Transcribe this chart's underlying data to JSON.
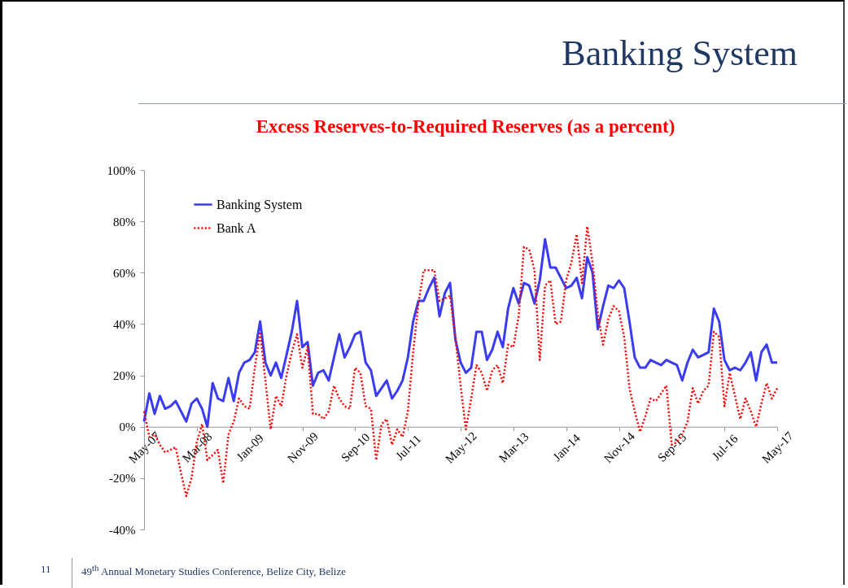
{
  "chart_data": {
    "type": "line",
    "title": "Banking System",
    "subtitle": "Excess Reserves-to-Required Reserves (as a percent)",
    "categories": [
      "May-07",
      null,
      null,
      null,
      null,
      null,
      null,
      null,
      null,
      null,
      "Mar-08",
      null,
      null,
      null,
      null,
      null,
      null,
      null,
      null,
      null,
      "Jan-09",
      null,
      null,
      null,
      null,
      null,
      null,
      null,
      null,
      null,
      "Nov-09",
      null,
      null,
      null,
      null,
      null,
      null,
      null,
      null,
      null,
      "Sep-10",
      null,
      null,
      null,
      null,
      null,
      null,
      null,
      null,
      null,
      "Jul-11",
      null,
      null,
      null,
      null,
      null,
      null,
      null,
      null,
      null,
      "May-12",
      null,
      null,
      null,
      null,
      null,
      null,
      null,
      null,
      null,
      "Mar-13",
      null,
      null,
      null,
      null,
      null,
      null,
      null,
      null,
      null,
      "Jan-14",
      null,
      null,
      null,
      null,
      null,
      null,
      null,
      null,
      null,
      "Nov-14",
      null,
      null,
      null,
      null,
      null,
      null,
      null,
      null,
      null,
      "Sep-15",
      null,
      null,
      null,
      null,
      null,
      null,
      null,
      null,
      null,
      "Jul-16",
      null,
      null,
      null,
      null,
      null,
      null,
      null,
      null,
      null,
      "May-17"
    ],
    "series": [
      {
        "name": "Banking System",
        "color": "#3b3bf2",
        "line_style": "solid",
        "values": [
          2,
          13,
          5,
          12,
          7,
          8,
          10,
          6,
          2,
          9,
          11,
          7,
          0,
          17,
          11,
          10,
          19,
          10,
          21,
          25,
          26,
          29,
          41,
          25,
          20,
          25,
          19,
          28,
          37,
          49,
          31,
          33,
          16,
          21,
          22,
          18,
          27,
          36,
          27,
          31,
          36,
          37,
          25,
          22,
          12,
          15,
          18,
          11,
          14,
          18,
          27,
          41,
          49,
          49,
          54,
          58,
          43,
          52,
          56,
          34,
          25,
          21,
          23,
          37,
          37,
          26,
          30,
          37,
          31,
          46,
          54,
          48,
          56,
          55,
          48,
          57,
          73,
          62,
          62,
          58,
          54,
          55,
          58,
          50,
          66,
          60,
          38,
          47,
          55,
          54,
          57,
          54,
          41,
          27,
          23,
          23,
          26,
          25,
          24,
          26,
          25,
          24,
          18,
          25,
          30,
          27,
          28,
          29,
          46,
          41,
          26,
          22,
          23,
          22,
          25,
          29,
          18,
          29,
          32,
          25,
          25
        ]
      },
      {
        "name": "Bank A",
        "color": "#ff0000",
        "line_style": "dotted",
        "values": [
          6,
          -4,
          -3,
          -7,
          -10,
          -9,
          -8,
          -18,
          -27,
          -20,
          -6,
          1,
          -13,
          -11,
          -9,
          -22,
          -3,
          2,
          11,
          8,
          7,
          23,
          37,
          18,
          -1,
          12,
          8,
          20,
          29,
          36,
          23,
          31,
          5,
          5,
          3,
          6,
          16,
          11,
          8,
          7,
          23,
          21,
          8,
          7,
          -13,
          1,
          3,
          -7,
          -1,
          -4,
          6,
          29,
          48,
          61,
          61,
          61,
          49,
          50,
          51,
          35,
          16,
          -1,
          11,
          24,
          21,
          14,
          22,
          24,
          17,
          32,
          31,
          43,
          70,
          69,
          61,
          26,
          55,
          57,
          40,
          41,
          57,
          64,
          75,
          56,
          78,
          64,
          44,
          32,
          42,
          47,
          45,
          35,
          15,
          6,
          -2,
          4,
          11,
          10,
          13,
          16,
          -7,
          -6,
          -3,
          2,
          15,
          9,
          14,
          16,
          37,
          35,
          8,
          21,
          12,
          3,
          11,
          6,
          0,
          9,
          17,
          11,
          15
        ]
      }
    ],
    "ylim": [
      -40,
      100
    ],
    "yticks": [
      {
        "value": -40,
        "label": "-40%"
      },
      {
        "value": -20,
        "label": "-20%"
      },
      {
        "value": 0,
        "label": "0%"
      },
      {
        "value": 20,
        "label": "20%"
      },
      {
        "value": 40,
        "label": "40%"
      },
      {
        "value": 60,
        "label": "60%"
      },
      {
        "value": 80,
        "label": "80%"
      },
      {
        "value": 100,
        "label": "100%"
      }
    ],
    "legend": "top left",
    "annotations": [
      "11",
      "49$^{th}$ Annual Monetary Studies Conference, Belize City, Belize"
    ]
  }
}
